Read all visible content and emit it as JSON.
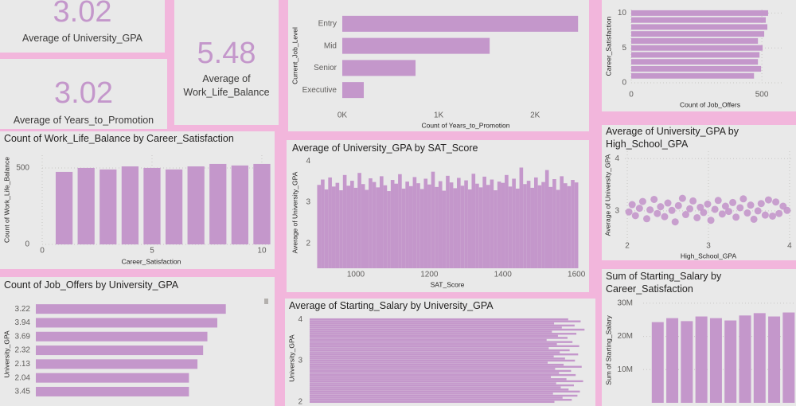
{
  "cards": [
    {
      "value": 3.02,
      "label": "Average of University_GPA"
    },
    {
      "value": 3.02,
      "label": "Average of Years_to_Promotion"
    },
    {
      "value": 5.48,
      "label": "Average of Work_Life_Balance"
    }
  ],
  "chart_data": [
    {
      "type": "hbar",
      "categories": [
        "Entry",
        "Mid",
        "Senior",
        "Executive"
      ],
      "values": [
        2446,
        1529,
        760,
        223
      ],
      "color": "#c497cb",
      "xlim": [
        0,
        2560
      ],
      "xticks": [
        {
          "value": 0,
          "label": "0K"
        },
        {
          "value": 1000,
          "label": "1K"
        },
        {
          "value": 2000,
          "label": "2K"
        }
      ],
      "x_label": "Count of Years_to_Promotion",
      "y_label": "Current_Job_Level",
      "grid": false
    },
    {
      "type": "hbar",
      "y": [
        10,
        9,
        8,
        7,
        6,
        5,
        4,
        3,
        2,
        1
      ],
      "values": [
        524,
        515,
        521,
        509,
        485,
        503,
        491,
        485,
        497,
        470
      ],
      "color": "#c497cb",
      "xlim": [
        0,
        585
      ],
      "xticks": [
        0,
        500
      ],
      "ylim": [
        0,
        10.5
      ],
      "yticks": [
        0,
        5,
        10
      ],
      "x_label": "Count of Job_Offers",
      "y_label": "Career_Satisfaction",
      "grid": true
    },
    {
      "type": "bar",
      "title": "Count of Work_Life_Balance by Career_Satisfaction",
      "x": [
        1,
        2,
        3,
        4,
        5,
        6,
        7,
        8,
        9,
        10
      ],
      "values": [
        474,
        500,
        490,
        510,
        500,
        490,
        510,
        526,
        516,
        526
      ],
      "color": "#c497cb",
      "xlim": [
        0,
        10.4
      ],
      "xticks": [
        0,
        5,
        10
      ],
      "ylim": [
        0,
        583
      ],
      "yticks": [
        0,
        500
      ],
      "x_label": "Career_Satisfaction",
      "y_label": "Count of Work_Life_Balance",
      "grid": true
    },
    {
      "type": "bar",
      "title": "Average of University_GPA by SAT_Score",
      "x": [
        900,
        910,
        920,
        930,
        940,
        950,
        960,
        970,
        980,
        990,
        1000,
        1010,
        1020,
        1030,
        1040,
        1050,
        1060,
        1070,
        1080,
        1090,
        1100,
        1110,
        1120,
        1130,
        1140,
        1150,
        1160,
        1170,
        1180,
        1190,
        1200,
        1210,
        1220,
        1230,
        1240,
        1250,
        1260,
        1270,
        1280,
        1290,
        1300,
        1310,
        1320,
        1330,
        1340,
        1350,
        1360,
        1370,
        1380,
        1390,
        1400,
        1410,
        1420,
        1430,
        1440,
        1450,
        1460,
        1470,
        1480,
        1490,
        1500,
        1510,
        1520,
        1530,
        1540,
        1550,
        1560,
        1570,
        1580,
        1590,
        1600
      ],
      "values": [
        3.42,
        3.55,
        3.31,
        3.6,
        3.38,
        3.47,
        3.29,
        3.66,
        3.4,
        3.52,
        3.35,
        3.71,
        3.44,
        3.3,
        3.58,
        3.49,
        3.36,
        3.63,
        3.41,
        3.27,
        3.54,
        3.45,
        3.68,
        3.33,
        3.5,
        3.39,
        3.61,
        3.46,
        3.32,
        3.57,
        3.43,
        3.74,
        3.37,
        3.51,
        3.28,
        3.64,
        3.48,
        3.34,
        3.59,
        3.4,
        3.53,
        3.31,
        3.69,
        3.45,
        3.36,
        3.62,
        3.42,
        3.55,
        3.29,
        3.5,
        3.47,
        3.66,
        3.38,
        3.57,
        3.33,
        3.84,
        3.44,
        3.52,
        3.35,
        3.6,
        3.41,
        3.49,
        3.78,
        3.37,
        3.56,
        3.3,
        3.63,
        3.46,
        3.39,
        3.54,
        3.48
      ],
      "color": "#c497cb",
      "xlim": [
        894,
        1604
      ],
      "xticks": [
        1000,
        1200,
        1400,
        1600
      ],
      "ylim": [
        1.4,
        4.1
      ],
      "yticks": [
        2,
        3,
        4
      ],
      "x_label": "SAT_Score",
      "y_label": "Average of University_GPA",
      "grid": false
    },
    {
      "type": "scatter",
      "title": "Average of University_GPA by High_School_GPA",
      "x": [
        2.02,
        2.06,
        2.1,
        2.15,
        2.19,
        2.24,
        2.28,
        2.33,
        2.37,
        2.41,
        2.46,
        2.5,
        2.55,
        2.59,
        2.63,
        2.68,
        2.72,
        2.77,
        2.81,
        2.86,
        2.9,
        2.94,
        2.99,
        3.03,
        3.08,
        3.12,
        3.17,
        3.21,
        3.25,
        3.3,
        3.34,
        3.39,
        3.43,
        3.48,
        3.52,
        3.56,
        3.61,
        3.65,
        3.7,
        3.74,
        3.79,
        3.83,
        3.87,
        3.92,
        3.97
      ],
      "values": [
        2.98,
        3.12,
        2.91,
        3.05,
        3.18,
        2.85,
        3.02,
        3.22,
        2.95,
        3.08,
        2.89,
        3.15,
        3.01,
        2.79,
        3.1,
        3.24,
        2.93,
        3.04,
        3.19,
        2.87,
        3.07,
        2.97,
        3.13,
        2.82,
        3.03,
        3.2,
        2.94,
        3.09,
        2.99,
        3.16,
        2.88,
        3.06,
        3.23,
        2.96,
        3.11,
        2.84,
        3.0,
        3.14,
        2.92,
        3.21,
        2.9,
        3.17,
        2.95,
        3.09,
        3.01
      ],
      "color": "#c497cb",
      "xlim": [
        1.97,
        4.03
      ],
      "xticks": [
        2,
        3,
        4
      ],
      "ylim": [
        2.39,
        4.14
      ],
      "yticks": [
        3,
        4
      ],
      "x_label": "High_School_GPA",
      "y_label": "Average of University_GPA",
      "grid": true
    },
    {
      "type": "hbar",
      "title": "Count of Job_Offers by University_GPA",
      "categories": [
        "3.22",
        "3.94",
        "3.69",
        "2.32",
        "2.13",
        "2.04",
        "3.45"
      ],
      "values": [
        13.4,
        12.8,
        12.1,
        11.8,
        11.4,
        10.8,
        10.8
      ],
      "color": "#c497cb",
      "xlim": [
        0,
        16
      ],
      "y_label": "University_GPA",
      "grid": false
    },
    {
      "type": "hbar",
      "title": "Average of Starting_Salary by University_GPA",
      "y": [
        4,
        3.95,
        3.9,
        3.85,
        3.8,
        3.75,
        3.7,
        3.65,
        3.6,
        3.55,
        3.5,
        3.45,
        3.4,
        3.35,
        3.3,
        3.25,
        3.2,
        3.15,
        3.1,
        3.05,
        3,
        2.95,
        2.9,
        2.85,
        2.8,
        2.75,
        2.7,
        2.65,
        2.6,
        2.55,
        2.5,
        2.45,
        2.4,
        2.35,
        2.3,
        2.25,
        2.2,
        2.15,
        2.1,
        2.05,
        2
      ],
      "values": [
        73000,
        76500,
        69000,
        74800,
        71200,
        77600,
        68400,
        75300,
        70100,
        72800,
        66900,
        74200,
        69800,
        76100,
        67500,
        73400,
        70600,
        75800,
        68900,
        72100,
        74900,
        67200,
        71700,
        76800,
        69300,
        73800,
        70400,
        75100,
        68100,
        72500,
        77200,
        69600,
        74600,
        70900,
        73100,
        76300,
        68700,
        75600,
        71400,
        74000,
        69100
      ],
      "color": "#c497cb",
      "xlim": [
        0,
        80000
      ],
      "ylim": [
        1.9,
        4.06
      ],
      "yticks": [
        2,
        3,
        4
      ],
      "y_label": "University_GPA",
      "grid": false
    },
    {
      "type": "bar",
      "title": "Sum of Starting_Salary by Career_Satisfaction",
      "x": [
        1,
        2,
        3,
        4,
        5,
        6,
        7,
        8,
        9,
        10
      ],
      "values": [
        24300000,
        25500000,
        24600000,
        26000000,
        25500000,
        24800000,
        26300000,
        27000000,
        26000000,
        27200000
      ],
      "color": "#c497cb",
      "xlim": [
        0,
        10.5
      ],
      "ylim": [
        0,
        32600000
      ],
      "yticks": [
        {
          "value": 10000000,
          "label": "10M"
        },
        {
          "value": 20000000,
          "label": "20M"
        },
        {
          "value": 30000000,
          "label": "30M"
        }
      ],
      "y_label": "Sum of Starting_Salary",
      "grid": true
    }
  ]
}
